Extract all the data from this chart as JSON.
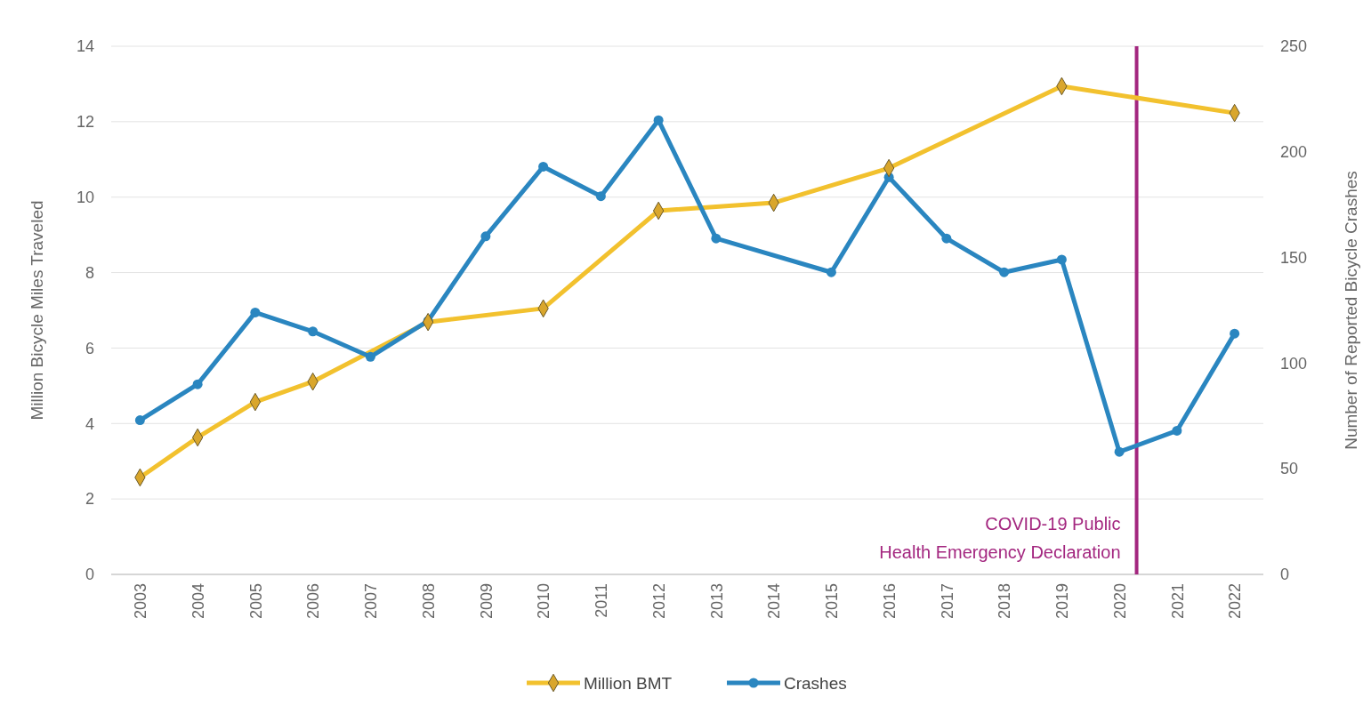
{
  "chart_data": {
    "type": "line",
    "xlim": [
      2002.5,
      2022.5
    ],
    "xticks": [
      2003,
      2004,
      2005,
      2006,
      2007,
      2008,
      2009,
      2010,
      2011,
      2012,
      2013,
      2014,
      2015,
      2016,
      2017,
      2018,
      2019,
      2020,
      2021,
      2022
    ],
    "ylabel": "Million Bicycle Miles Traveled",
    "y2label": "Number of Reported Bicycle Crashes",
    "ylim": [
      0,
      14
    ],
    "yticks": [
      0,
      2,
      4,
      6,
      8,
      10,
      12,
      14
    ],
    "y2lim": [
      0,
      250
    ],
    "y2ticks": [
      0,
      50,
      100,
      150,
      200,
      250
    ],
    "grid": "y",
    "legend": "bottom",
    "series": [
      {
        "name": "Million BMT",
        "color": "#f2c12e",
        "marker": "diamond",
        "x": [
          2003,
          2004,
          2005,
          2006,
          2008,
          2010,
          2012,
          2014,
          2016,
          2019,
          2022
        ],
        "values": [
          2.57,
          3.63,
          4.57,
          5.11,
          6.69,
          7.05,
          9.64,
          9.85,
          10.77,
          12.94,
          12.23
        ]
      },
      {
        "name": "Crashes",
        "color": "#2a86c0",
        "marker": "circle",
        "axis": "y2",
        "x": [
          2003,
          2004,
          2005,
          2006,
          2007,
          2008,
          2009,
          2010,
          2011,
          2012,
          2013,
          2015,
          2016,
          2017,
          2018,
          2019,
          2020,
          2021,
          2022
        ],
        "values": [
          73,
          90,
          124,
          115,
          103,
          120,
          160,
          193,
          179,
          215,
          159,
          143,
          188,
          159,
          143,
          149,
          58,
          68,
          114
        ]
      }
    ],
    "ref_lines": [
      {
        "axis": "x",
        "value": 2020.3,
        "label": "COVID-19 Public Health Emergency Declaration",
        "color": "#a3267f"
      }
    ]
  }
}
